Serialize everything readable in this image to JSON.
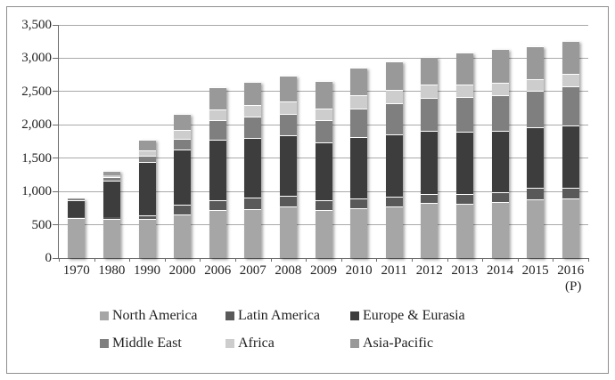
{
  "figure": {
    "background": "#ffffff",
    "border_color": "#8f8f8f",
    "text_color": "#1f1f1f",
    "gridline_color": "#a9a9a9",
    "axis_line_color": "#6b6b6b"
  },
  "chart_data": {
    "type": "bar",
    "stacked": true,
    "title": "",
    "xlabel": "",
    "ylabel": "",
    "grid": true,
    "legend_position": "bottom",
    "categories": [
      "1970",
      "1980",
      "1990",
      "2000",
      "2006",
      "2007",
      "2008",
      "2009",
      "2010",
      "2011",
      "2012",
      "2013",
      "2014",
      "2015",
      "2016"
    ],
    "category_sublabels": [
      "",
      "",
      "",
      "",
      "",
      "",
      "",
      "",
      "",
      "",
      "",
      "",
      "",
      "",
      "(P)"
    ],
    "series": [
      {
        "name": "North America",
        "color": "#a6a6a6",
        "values": [
          600,
          590,
          590,
          660,
          720,
          740,
          775,
          715,
          745,
          780,
          825,
          810,
          845,
          880,
          890
        ]
      },
      {
        "name": "Latin America",
        "color": "#595959",
        "values": [
          20,
          30,
          45,
          140,
          150,
          165,
          165,
          155,
          145,
          145,
          140,
          150,
          145,
          170,
          165
        ]
      },
      {
        "name": "Europe & Eurasia",
        "color": "#3d3d3d",
        "values": [
          255,
          540,
          805,
          835,
          905,
          900,
          900,
          870,
          930,
          930,
          940,
          935,
          925,
          910,
          930
        ]
      },
      {
        "name": "Middle East",
        "color": "#7f7f7f",
        "values": [
          8,
          55,
          100,
          150,
          290,
          320,
          330,
          330,
          420,
          470,
          495,
          525,
          525,
          555,
          590
        ]
      },
      {
        "name": "Africa",
        "color": "#cdcdcd",
        "values": [
          4,
          30,
          75,
          135,
          170,
          170,
          185,
          175,
          200,
          195,
          200,
          185,
          190,
          170,
          190
        ]
      },
      {
        "name": "Asia-Pacific",
        "color": "#999999",
        "values": [
          8,
          60,
          160,
          245,
          335,
          345,
          385,
          410,
          415,
          430,
          420,
          480,
          510,
          495,
          495
        ]
      }
    ],
    "totals": [
      895,
      1305,
      1775,
      2165,
      2570,
      2640,
      2740,
      2655,
      2855,
      2950,
      3020,
      3085,
      3140,
      3180,
      3260
    ],
    "y_axis": {
      "min": 0,
      "max": 3500,
      "tick_interval": 500,
      "tick_values": [
        0,
        500,
        1000,
        1500,
        2000,
        2500,
        3000,
        3500
      ],
      "tick_labels": [
        "0",
        "500",
        "1,000",
        "1,500",
        "2,000",
        "2,500",
        "3,000",
        "3,500"
      ]
    }
  }
}
